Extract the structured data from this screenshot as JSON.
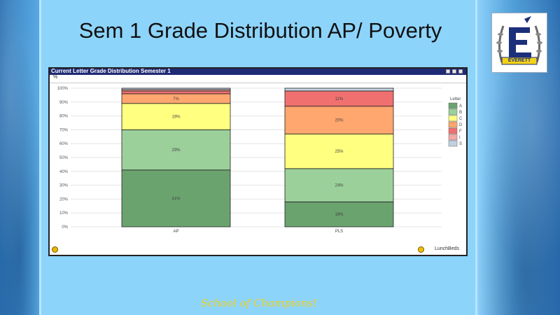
{
  "slide": {
    "title": "Sem 1 Grade Distribution AP/ Poverty",
    "tagline": "School of Champions!",
    "logo_text": "EVERETT",
    "logo_letter": "E"
  },
  "window": {
    "title": "Current Letter Grade Distribution Semester 1",
    "toolbar_label": "%",
    "footer_brand": "LunchBeds"
  },
  "colors": {
    "A": "#6aa36e",
    "B": "#9bd09b",
    "C": "#ffff80",
    "D": "#ffa76e",
    "F": "#f07070",
    "I": "#f4a8a8",
    "S": "#c3d2e0"
  },
  "chart_data": {
    "type": "bar",
    "stacked": true,
    "categories": [
      "AP",
      "PLS"
    ],
    "series": [
      {
        "name": "A",
        "values": [
          41,
          18
        ]
      },
      {
        "name": "B",
        "values": [
          29,
          24
        ]
      },
      {
        "name": "C",
        "values": [
          19,
          25
        ]
      },
      {
        "name": "D",
        "values": [
          7,
          20
        ]
      },
      {
        "name": "F",
        "values": [
          2,
          11
        ]
      },
      {
        "name": "I",
        "values": [
          1,
          0
        ]
      },
      {
        "name": "S",
        "values": [
          1,
          2
        ]
      }
    ],
    "data_labels": [
      [
        "41%",
        "29%",
        "19%",
        "7%",
        "",
        "",
        ""
      ],
      [
        "18%",
        "24%",
        "25%",
        "20%",
        "11%",
        "",
        ""
      ]
    ],
    "y_ticks": [
      "0%",
      "10%",
      "20%",
      "30%",
      "40%",
      "50%",
      "60%",
      "70%",
      "80%",
      "90%",
      "100%"
    ],
    "ylim": [
      0,
      100
    ],
    "grid": true,
    "legend_title": "Letter",
    "legend_position": "right"
  }
}
